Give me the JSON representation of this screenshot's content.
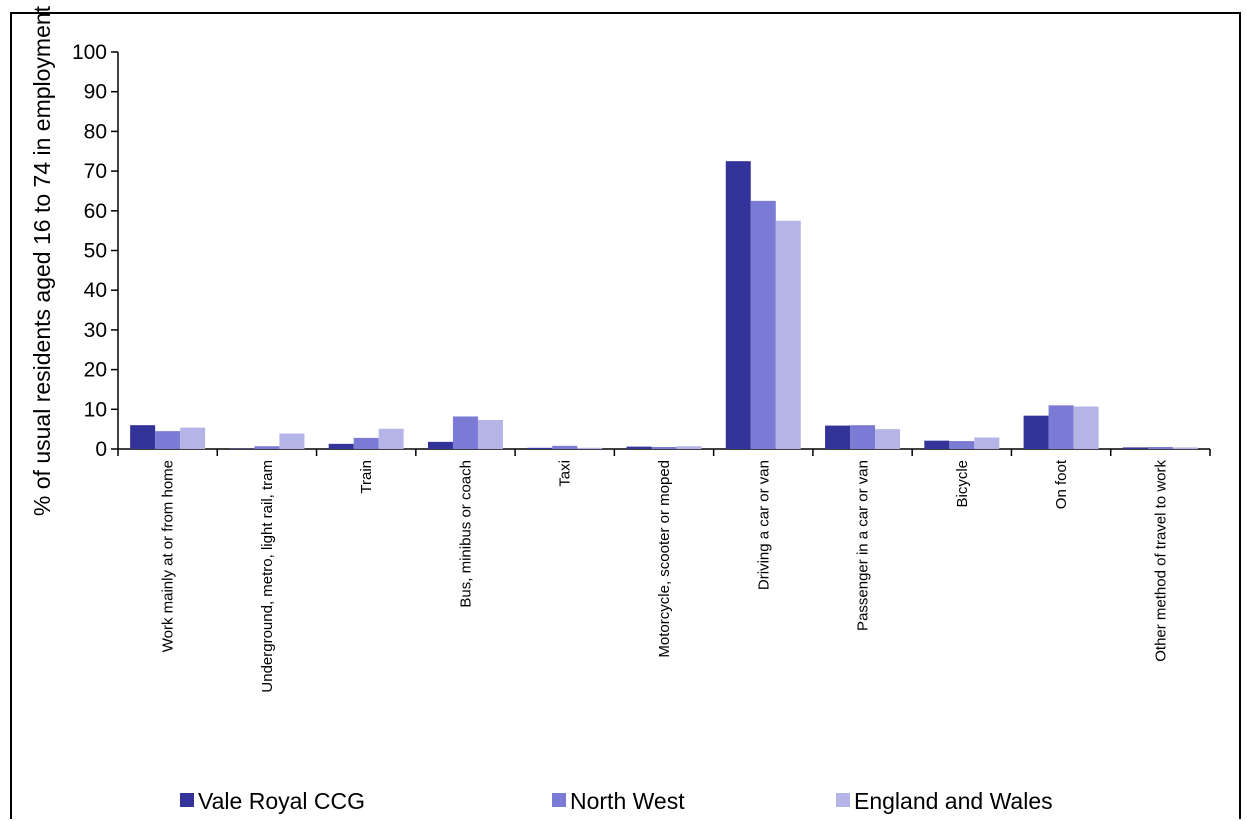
{
  "chart_data": {
    "type": "bar",
    "title": "",
    "xlabel": "",
    "ylabel": "% of usual residents aged 16 to 74 in employment",
    "ylim": [
      0,
      100
    ],
    "yticks": [
      0,
      10,
      20,
      30,
      40,
      50,
      60,
      70,
      80,
      90,
      100
    ],
    "grid": false,
    "legend_position": "bottom",
    "categories": [
      "Work mainly at or from home",
      "Underground, metro, light rail, tram",
      "Train",
      "Bus, minibus or coach",
      "Taxi",
      "Motorcycle, scooter or moped",
      "Driving a car or van",
      "Passenger in a car or van",
      "Bicycle",
      "On foot",
      "Other method of travel to work"
    ],
    "series": [
      {
        "name": "Vale Royal CCG",
        "color": "#333399",
        "values": [
          6.0,
          0.1,
          1.3,
          1.8,
          0.3,
          0.6,
          72.5,
          5.9,
          2.1,
          8.4,
          0.4
        ]
      },
      {
        "name": "North West",
        "color": "#7b7bd5",
        "values": [
          4.5,
          0.7,
          2.8,
          8.2,
          0.8,
          0.5,
          62.5,
          6.0,
          2.0,
          11.0,
          0.5
        ]
      },
      {
        "name": "England and Wales",
        "color": "#b4b4e6",
        "values": [
          5.4,
          3.9,
          5.1,
          7.3,
          0.3,
          0.7,
          57.5,
          5.0,
          2.9,
          10.7,
          0.4
        ]
      }
    ]
  }
}
